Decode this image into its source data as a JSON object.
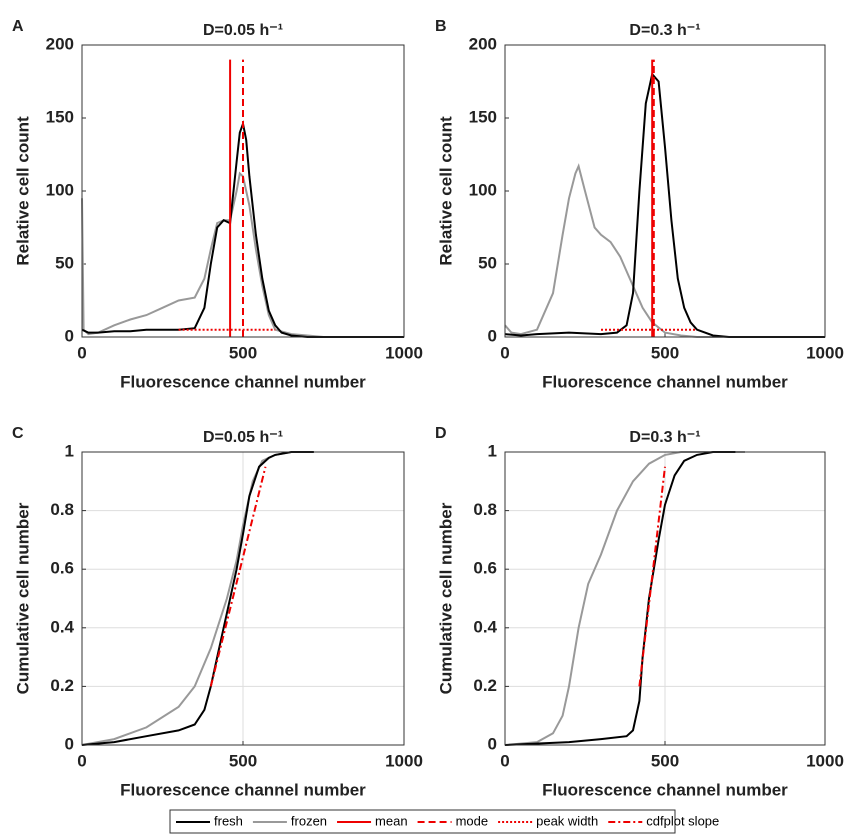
{
  "chart_data": [
    {
      "type": "line",
      "panel_label": "A",
      "title": "D=0.05 h⁻¹",
      "xlabel": "Fluorescence channel number",
      "ylabel": "Relative cell count",
      "xlim": [
        0,
        1000
      ],
      "xticks": [
        0,
        500,
        1000
      ],
      "ylim": [
        0,
        200
      ],
      "yticks": [
        0,
        50,
        100,
        150,
        200
      ],
      "grid": false,
      "series": [
        {
          "color": "#999999",
          "dash": "solid",
          "x": [
            0,
            5,
            20,
            50,
            100,
            150,
            200,
            250,
            300,
            350,
            380,
            400,
            420,
            440,
            460,
            480,
            490,
            500,
            510,
            520,
            540,
            560,
            580,
            600,
            650,
            700,
            750,
            1000
          ],
          "values": [
            95,
            5,
            2,
            3,
            8,
            12,
            15,
            20,
            25,
            27,
            40,
            60,
            78,
            80,
            80,
            100,
            112,
            110,
            100,
            90,
            60,
            35,
            15,
            5,
            2,
            1,
            0,
            0
          ]
        },
        {
          "color": "#000000",
          "dash": "solid",
          "x": [
            0,
            20,
            50,
            100,
            150,
            200,
            250,
            300,
            350,
            380,
            400,
            420,
            440,
            460,
            480,
            490,
            500,
            510,
            520,
            540,
            560,
            580,
            600,
            620,
            650,
            700,
            800,
            1000
          ],
          "values": [
            5,
            3,
            3,
            4,
            4,
            5,
            5,
            5,
            6,
            20,
            50,
            75,
            80,
            78,
            120,
            140,
            146,
            135,
            110,
            70,
            40,
            18,
            8,
            3,
            1,
            0,
            0,
            0
          ]
        },
        {
          "color": "#ee0000",
          "dash": "solid",
          "x": [
            460,
            460
          ],
          "values": [
            0,
            190
          ]
        },
        {
          "color": "#ee0000",
          "dash": "dashed",
          "x": [
            500,
            500
          ],
          "values": [
            0,
            190
          ]
        },
        {
          "color": "#ee0000",
          "dash": "dotted",
          "x": [
            300,
            600
          ],
          "values": [
            5,
            5
          ]
        }
      ]
    },
    {
      "type": "line",
      "panel_label": "B",
      "title": "D=0.3 h⁻¹",
      "xlabel": "Fluorescence channel number",
      "ylabel": "Relative cell count",
      "xlim": [
        0,
        1000
      ],
      "xticks": [
        0,
        500,
        1000
      ],
      "ylim": [
        0,
        200
      ],
      "yticks": [
        0,
        50,
        100,
        150,
        200
      ],
      "grid": false,
      "series": [
        {
          "color": "#999999",
          "dash": "solid",
          "x": [
            0,
            20,
            50,
            100,
            150,
            180,
            200,
            220,
            230,
            250,
            280,
            300,
            330,
            360,
            400,
            430,
            460,
            500,
            550,
            600,
            700,
            1000
          ],
          "values": [
            8,
            3,
            2,
            5,
            30,
            70,
            95,
            112,
            117,
            100,
            75,
            70,
            65,
            55,
            35,
            20,
            10,
            3,
            1,
            0,
            0,
            0
          ]
        },
        {
          "color": "#000000",
          "dash": "solid",
          "x": [
            0,
            50,
            100,
            200,
            300,
            350,
            380,
            400,
            420,
            440,
            460,
            480,
            500,
            520,
            540,
            560,
            580,
            600,
            650,
            700,
            1000
          ],
          "values": [
            2,
            1,
            2,
            3,
            2,
            3,
            8,
            30,
            100,
            160,
            180,
            175,
            130,
            80,
            40,
            20,
            10,
            5,
            1,
            0,
            0
          ]
        },
        {
          "color": "#ee0000",
          "dash": "solid",
          "x": [
            460,
            460
          ],
          "values": [
            0,
            190
          ]
        },
        {
          "color": "#ee0000",
          "dash": "dashed",
          "x": [
            465,
            465
          ],
          "values": [
            0,
            190
          ]
        },
        {
          "color": "#ee0000",
          "dash": "dotted",
          "x": [
            300,
            600
          ],
          "values": [
            5,
            5
          ]
        }
      ]
    },
    {
      "type": "line",
      "panel_label": "C",
      "title": "D=0.05 h⁻¹",
      "xlabel": "Fluorescence channel number",
      "ylabel": "Cumulative cell number",
      "xlim": [
        0,
        1000
      ],
      "xticks": [
        0,
        500,
        1000
      ],
      "ylim": [
        0,
        1
      ],
      "yticks": [
        0,
        0.2,
        0.4,
        0.6,
        0.8,
        1
      ],
      "grid": true,
      "series": [
        {
          "color": "#999999",
          "dash": "solid",
          "x": [
            0,
            100,
            200,
            300,
            350,
            400,
            450,
            480,
            500,
            530,
            560,
            600,
            650,
            720
          ],
          "values": [
            0,
            0.02,
            0.06,
            0.13,
            0.2,
            0.33,
            0.5,
            0.63,
            0.75,
            0.9,
            0.97,
            0.99,
            1,
            1
          ]
        },
        {
          "color": "#000000",
          "dash": "solid",
          "x": [
            0,
            100,
            200,
            300,
            350,
            380,
            400,
            420,
            450,
            480,
            500,
            520,
            550,
            580,
            600,
            650,
            720
          ],
          "values": [
            0,
            0.01,
            0.03,
            0.05,
            0.07,
            0.12,
            0.2,
            0.3,
            0.45,
            0.6,
            0.72,
            0.85,
            0.95,
            0.98,
            0.99,
            1,
            1
          ]
        },
        {
          "color": "#ee0000",
          "dash": "dashdot",
          "x": [
            400,
            570
          ],
          "values": [
            0.2,
            0.95
          ]
        }
      ]
    },
    {
      "type": "line",
      "panel_label": "D",
      "title": "D=0.3 h⁻¹",
      "xlabel": "Fluorescence channel number",
      "ylabel": "Cumulative cell number",
      "xlim": [
        0,
        1000
      ],
      "xticks": [
        0,
        500,
        1000
      ],
      "ylim": [
        0,
        1
      ],
      "yticks": [
        0,
        0.2,
        0.4,
        0.6,
        0.8,
        1
      ],
      "grid": true,
      "series": [
        {
          "color": "#999999",
          "dash": "solid",
          "x": [
            0,
            100,
            150,
            180,
            200,
            230,
            260,
            300,
            350,
            400,
            450,
            500,
            550,
            600,
            700,
            750
          ],
          "values": [
            0,
            0.01,
            0.04,
            0.1,
            0.2,
            0.4,
            0.55,
            0.65,
            0.8,
            0.9,
            0.96,
            0.99,
            1,
            1,
            1,
            1
          ]
        },
        {
          "color": "#000000",
          "dash": "solid",
          "x": [
            0,
            200,
            300,
            380,
            400,
            420,
            430,
            450,
            480,
            500,
            530,
            560,
            600,
            650,
            720
          ],
          "values": [
            0,
            0.01,
            0.02,
            0.03,
            0.05,
            0.15,
            0.3,
            0.5,
            0.7,
            0.82,
            0.92,
            0.97,
            0.99,
            1,
            1
          ]
        },
        {
          "color": "#ee0000",
          "dash": "dashdot",
          "x": [
            420,
            500
          ],
          "values": [
            0.2,
            0.95
          ]
        }
      ]
    }
  ],
  "legend": [
    {
      "name": "fresh",
      "color": "#000000",
      "dash": "solid"
    },
    {
      "name": "frozen",
      "color": "#999999",
      "dash": "solid"
    },
    {
      "name": "mean",
      "color": "#ee0000",
      "dash": "solid"
    },
    {
      "name": "mode",
      "color": "#ee0000",
      "dash": "dashed"
    },
    {
      "name": "peak width",
      "color": "#ee0000",
      "dash": "dotted"
    },
    {
      "name": "cdfplot slope",
      "color": "#ee0000",
      "dash": "dashdot"
    }
  ]
}
